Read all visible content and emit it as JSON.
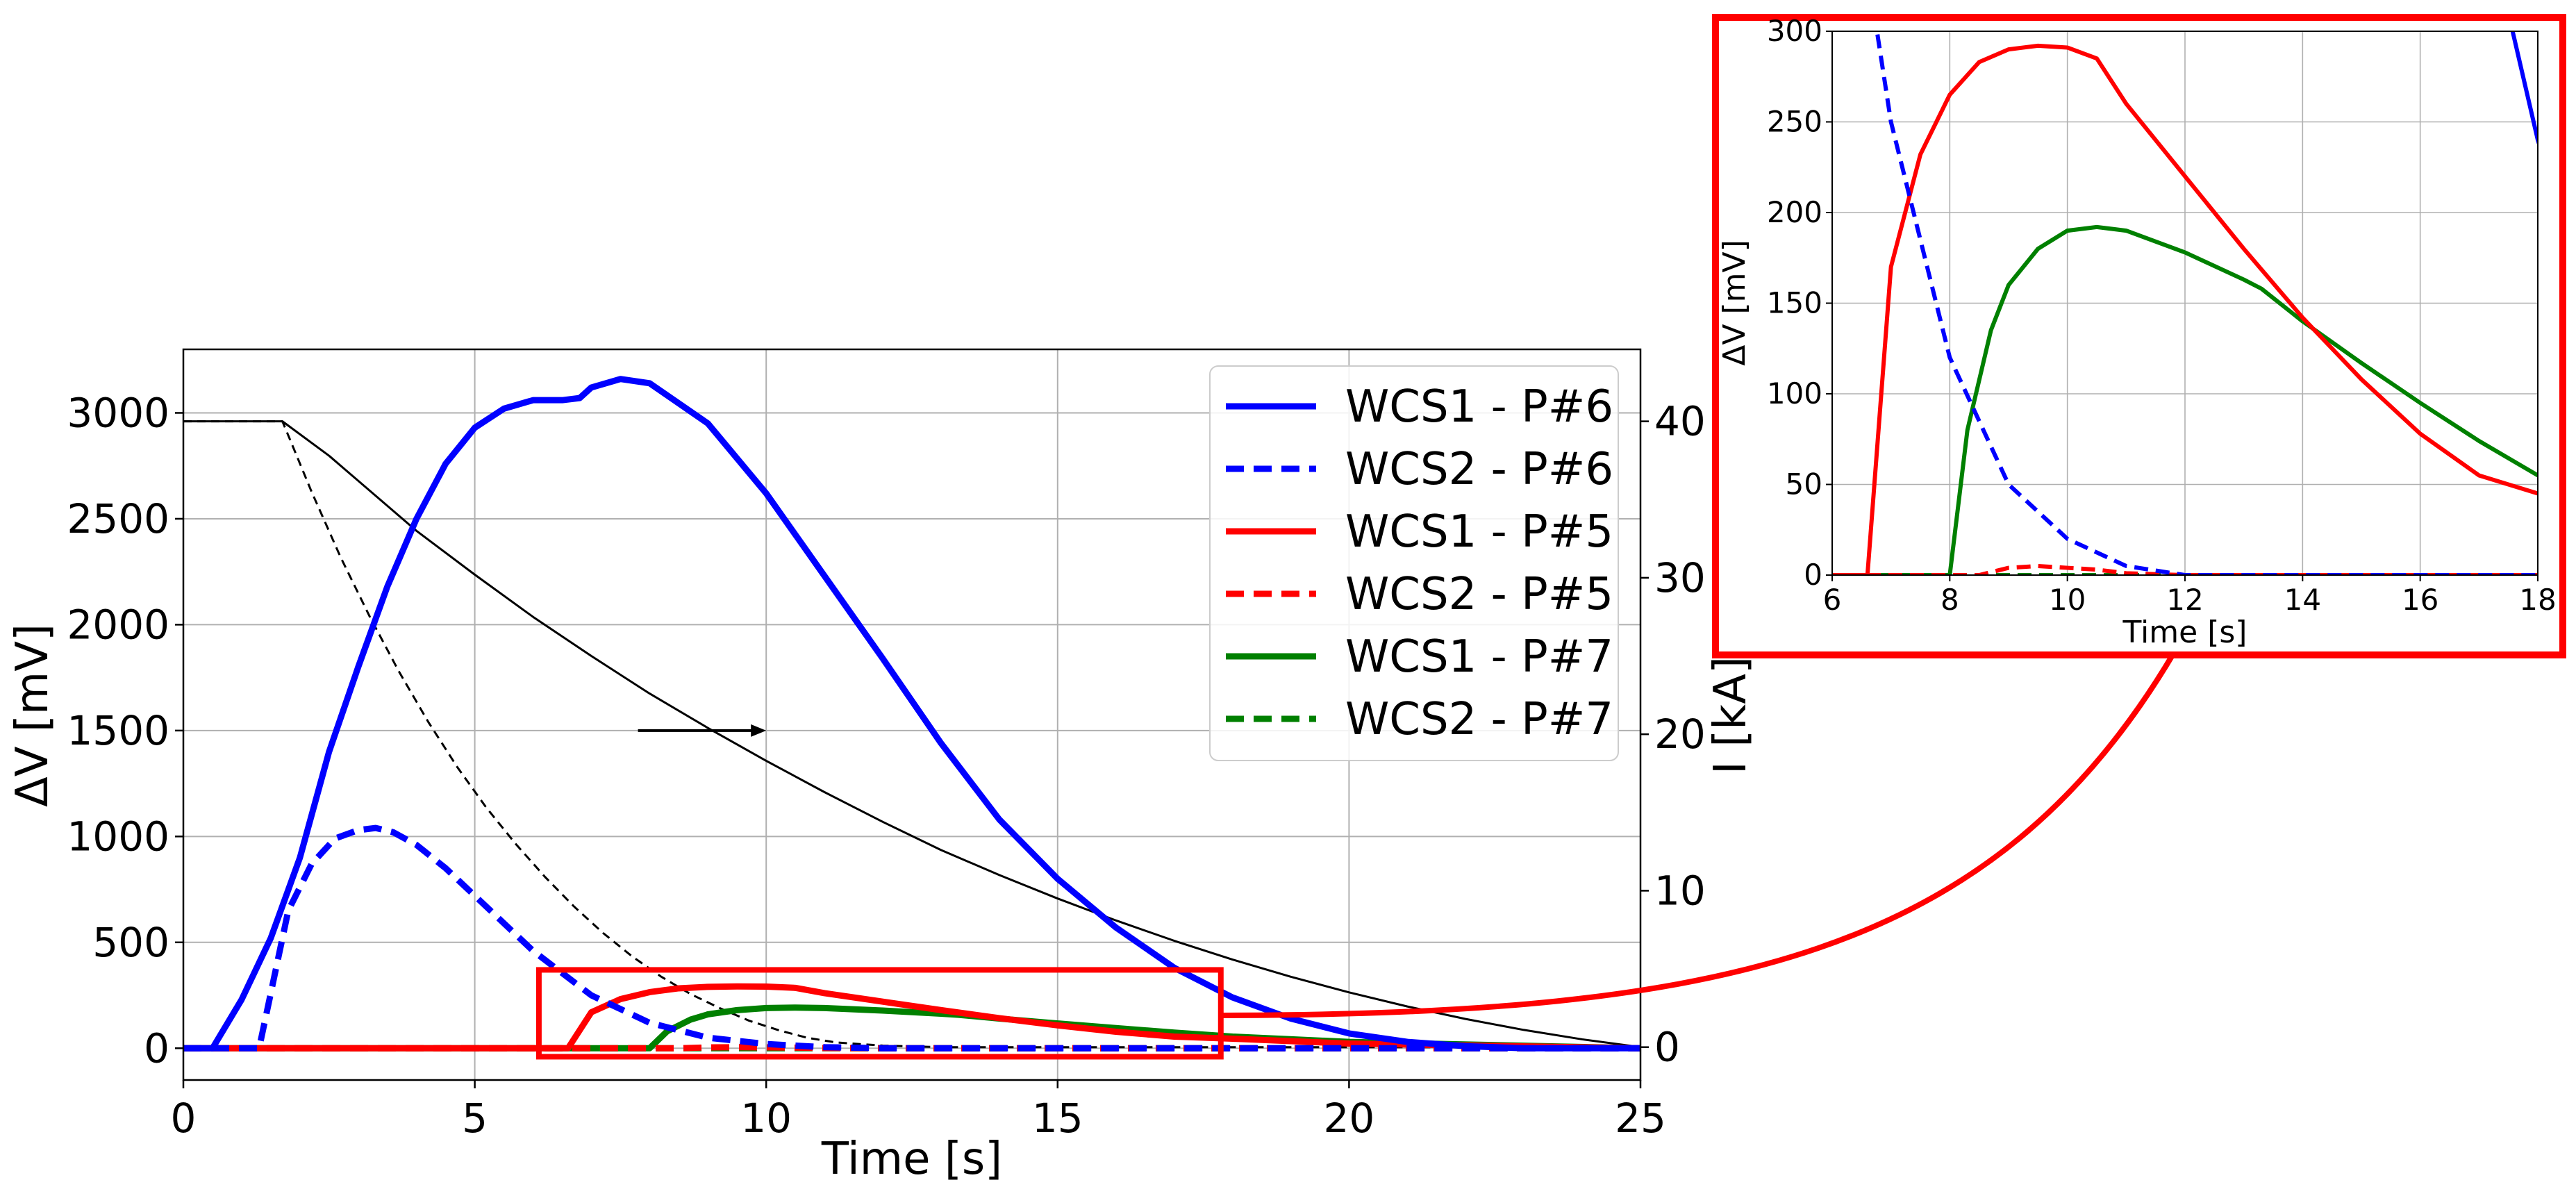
{
  "chart_data": [
    {
      "id": "main",
      "type": "line",
      "xlabel": "Time [s]",
      "ylabel": "ΔV [mV]",
      "y2label": "I [kA]",
      "xlim": [
        0,
        25
      ],
      "ylim": [
        -150,
        3300
      ],
      "y2lim": [
        -2.1,
        44.6
      ],
      "grid": true,
      "legend_position": "top-right",
      "xticks": [
        0,
        5,
        10,
        15,
        20,
        25
      ],
      "yticks": [
        0,
        500,
        1000,
        1500,
        2000,
        2500,
        3000
      ],
      "y2ticks": [
        0,
        10,
        20,
        30,
        40
      ],
      "series": [
        {
          "name": "WCS1 - P#6",
          "color": "#0000ff",
          "dash": "solid",
          "x": [
            0,
            0.5,
            1,
            1.5,
            2,
            2.5,
            3,
            3.5,
            4,
            4.5,
            5,
            5.5,
            6,
            6.5,
            6.8,
            7,
            7.5,
            8,
            9,
            10,
            11,
            12,
            13,
            14,
            15,
            16,
            17,
            18,
            19,
            20,
            21,
            22,
            23,
            25
          ],
          "y": [
            0,
            0,
            230,
            520,
            900,
            1400,
            1800,
            2180,
            2500,
            2760,
            2930,
            3020,
            3060,
            3060,
            3070,
            3120,
            3160,
            3140,
            2950,
            2620,
            2230,
            1840,
            1440,
            1080,
            800,
            570,
            380,
            240,
            140,
            70,
            30,
            10,
            0,
            0
          ]
        },
        {
          "name": "WCS2 - P#6",
          "color": "#0000ff",
          "dash": "dashed",
          "x": [
            0,
            1.3,
            1.8,
            2.2,
            2.6,
            3,
            3.3,
            3.6,
            4,
            4.5,
            5,
            5.5,
            6,
            7,
            8,
            9,
            10,
            11,
            12,
            25
          ],
          "y": [
            0,
            0,
            650,
            870,
            990,
            1030,
            1040,
            1020,
            960,
            850,
            720,
            590,
            460,
            250,
            120,
            50,
            20,
            5,
            0,
            0
          ]
        },
        {
          "name": "WCS1 - P#5",
          "color": "#ff0000",
          "dash": "solid",
          "x": [
            0,
            6.6,
            7,
            7.5,
            8,
            8.5,
            9,
            9.5,
            10,
            10.5,
            11,
            12,
            13,
            14,
            15,
            16,
            17,
            18,
            20,
            25
          ],
          "y": [
            0,
            0,
            170,
            232,
            265,
            283,
            290,
            292,
            291,
            285,
            260,
            220,
            180,
            142,
            108,
            78,
            55,
            45,
            22,
            0
          ]
        },
        {
          "name": "WCS2 - P#5",
          "color": "#ff0000",
          "dash": "dashed",
          "x": [
            0,
            8.5,
            9,
            9.5,
            10,
            10.5,
            11,
            12,
            25
          ],
          "y": [
            0,
            0,
            4,
            5,
            4,
            3,
            1,
            0,
            0
          ]
        },
        {
          "name": "WCS1 - P#7",
          "color": "#008000",
          "dash": "solid",
          "x": [
            0,
            8,
            8.3,
            8.7,
            9,
            9.5,
            10,
            10.5,
            11,
            12,
            13,
            13.3,
            14,
            15,
            16,
            17,
            18,
            20,
            25
          ],
          "y": [
            0,
            0,
            80,
            135,
            160,
            180,
            190,
            192,
            190,
            178,
            163,
            158,
            140,
            117,
            95,
            74,
            55,
            30,
            0
          ]
        },
        {
          "name": "WCS2 - P#7",
          "color": "#008000",
          "dash": "dashed",
          "x": [
            0,
            25
          ],
          "y": [
            0,
            0
          ]
        }
      ],
      "current_series": [
        {
          "color": "#000000",
          "dash": "solid",
          "axis": "right",
          "x": [
            0,
            1.7,
            2.5,
            4,
            5,
            6,
            7,
            8,
            9,
            10,
            11,
            12,
            13,
            14,
            15,
            16,
            17,
            18,
            19,
            20,
            21,
            22,
            23,
            24,
            25
          ],
          "y": [
            40,
            40,
            37.8,
            33,
            30.2,
            27.5,
            25,
            22.6,
            20.4,
            18.3,
            16.3,
            14.4,
            12.6,
            11,
            9.5,
            8.1,
            6.8,
            5.6,
            4.5,
            3.5,
            2.6,
            1.8,
            1.1,
            0.5,
            0
          ]
        },
        {
          "color": "#000000",
          "dash": "dashed",
          "axis": "right",
          "x": [
            0,
            1.7,
            2.2,
            2.7,
            3.2,
            3.7,
            4.2,
            4.7,
            5.2,
            5.7,
            6.2,
            6.7,
            7.2,
            7.7,
            8.2,
            8.7,
            9.2,
            9.7,
            10.2,
            10.7,
            11.2,
            12,
            13,
            25
          ],
          "y": [
            40,
            40,
            35.5,
            31.3,
            27.5,
            24,
            20.8,
            17.9,
            15.3,
            13,
            10.9,
            9,
            7.3,
            5.8,
            4.5,
            3.4,
            2.5,
            1.7,
            1.1,
            0.6,
            0.3,
            0.1,
            0,
            0
          ]
        }
      ],
      "arrow": {
        "from": [
          7.8,
          1500
        ],
        "to": [
          10,
          1500
        ]
      },
      "zoom_box": {
        "x": [
          6.1,
          17.8
        ],
        "y": [
          -40,
          370
        ]
      }
    },
    {
      "id": "inset",
      "type": "line",
      "xlabel": "Time [s]",
      "ylabel": "ΔV [mV]",
      "xlim": [
        6,
        18
      ],
      "ylim": [
        0,
        300
      ],
      "grid": true,
      "xticks": [
        6,
        8,
        10,
        12,
        14,
        16,
        18
      ],
      "yticks": [
        0,
        50,
        100,
        150,
        200,
        250,
        300
      ]
    }
  ]
}
